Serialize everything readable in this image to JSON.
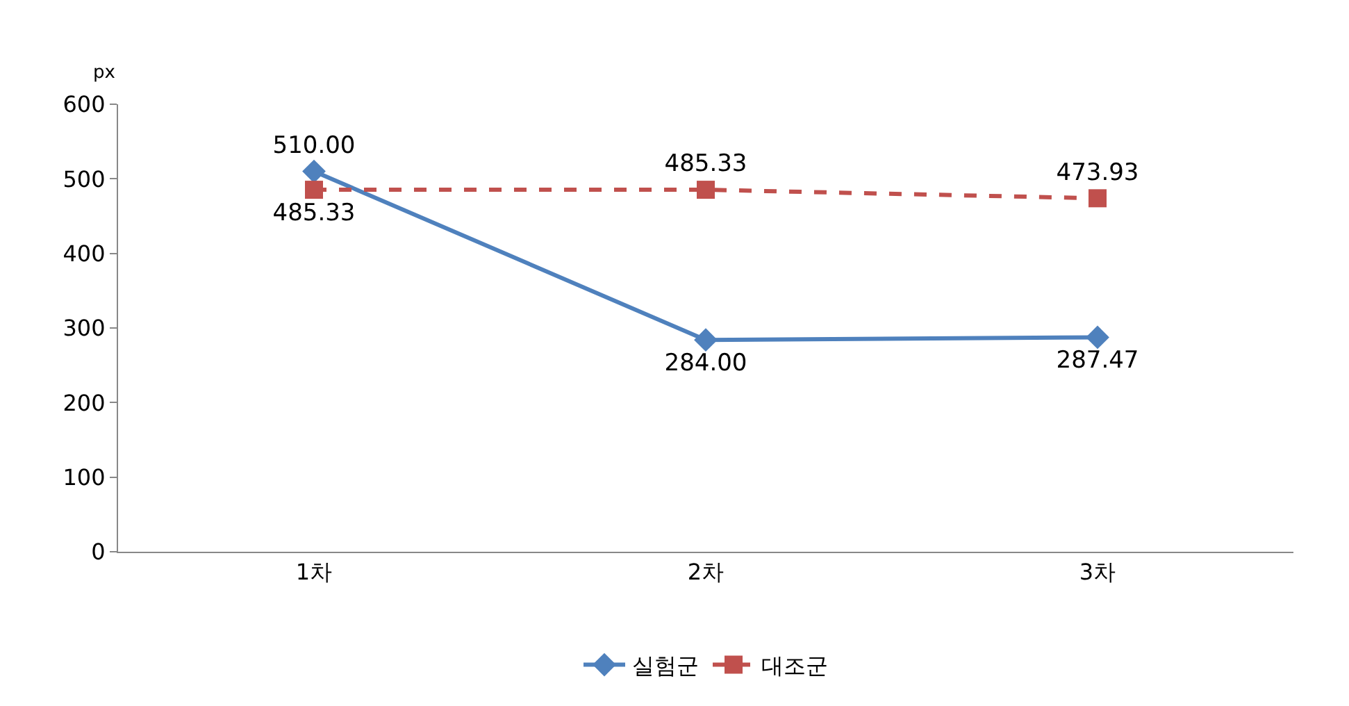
{
  "chart_data": {
    "type": "line",
    "ylabel": "px",
    "categories": [
      "1차",
      "2차",
      "3차"
    ],
    "series": [
      {
        "name": "실험군",
        "color": "#4f81bd",
        "values": [
          510.0,
          284.0,
          287.47
        ],
        "value_labels": [
          "510.00",
          "284.00",
          "287.47"
        ],
        "marker": "diamond",
        "line_style": "solid"
      },
      {
        "name": "대조군",
        "color": "#c0504d",
        "values": [
          485.33,
          485.33,
          473.93
        ],
        "value_labels": [
          "485.33",
          "485.33",
          "473.93"
        ],
        "marker": "square",
        "line_style": "dashed"
      }
    ],
    "ylim": [
      0,
      600
    ],
    "yticks": [
      0,
      100,
      200,
      300,
      400,
      500,
      600
    ],
    "legend": "bottom"
  }
}
